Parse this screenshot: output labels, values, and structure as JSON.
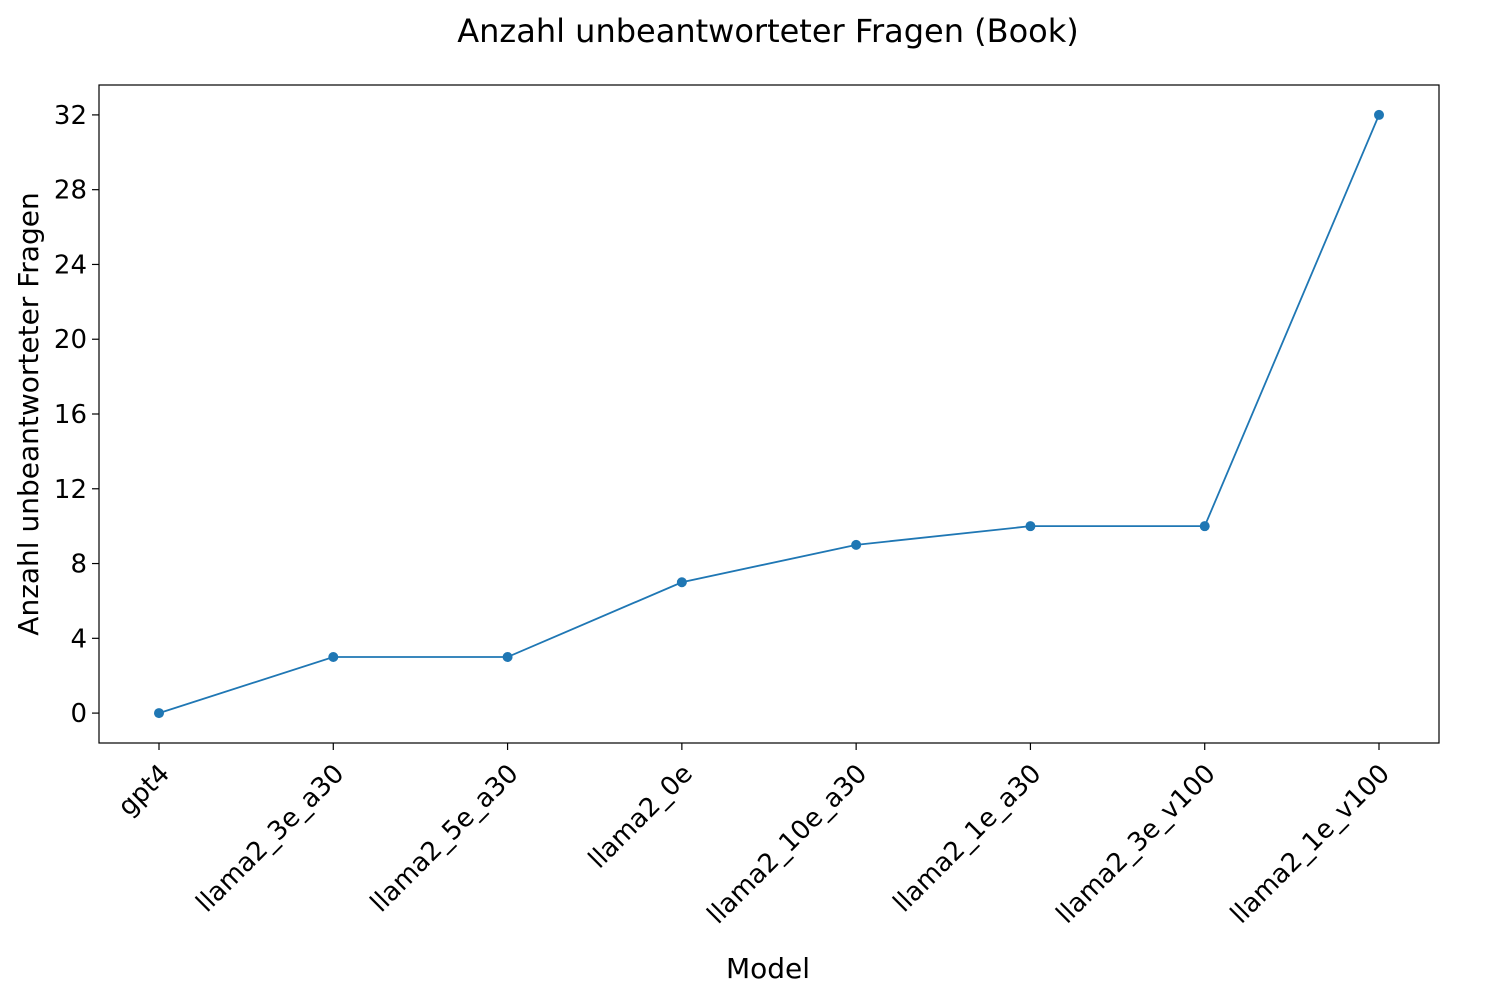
{
  "chart_data": {
    "type": "line",
    "title": "Anzahl unbeantworteter Fragen (Book)",
    "xlabel": "Model",
    "ylabel": "Anzahl unbeantworteter Fragen",
    "categories": [
      "gpt4",
      "llama2_3e_a30",
      "llama2_5e_a30",
      "llama2_0e",
      "llama2_10e_a30",
      "llama2_1e_a30",
      "llama2_3e_v100",
      "llama2_1e_v100"
    ],
    "series": [
      {
        "values": [
          0,
          3,
          3,
          7,
          9,
          10,
          10,
          32
        ],
        "color": "#1f77b4",
        "marker": "circle"
      }
    ],
    "ylim": [
      -1.6,
      33.6
    ],
    "yticks": [
      0,
      4,
      8,
      12,
      16,
      20,
      24,
      28,
      32
    ],
    "grid": false,
    "legend": "none"
  }
}
